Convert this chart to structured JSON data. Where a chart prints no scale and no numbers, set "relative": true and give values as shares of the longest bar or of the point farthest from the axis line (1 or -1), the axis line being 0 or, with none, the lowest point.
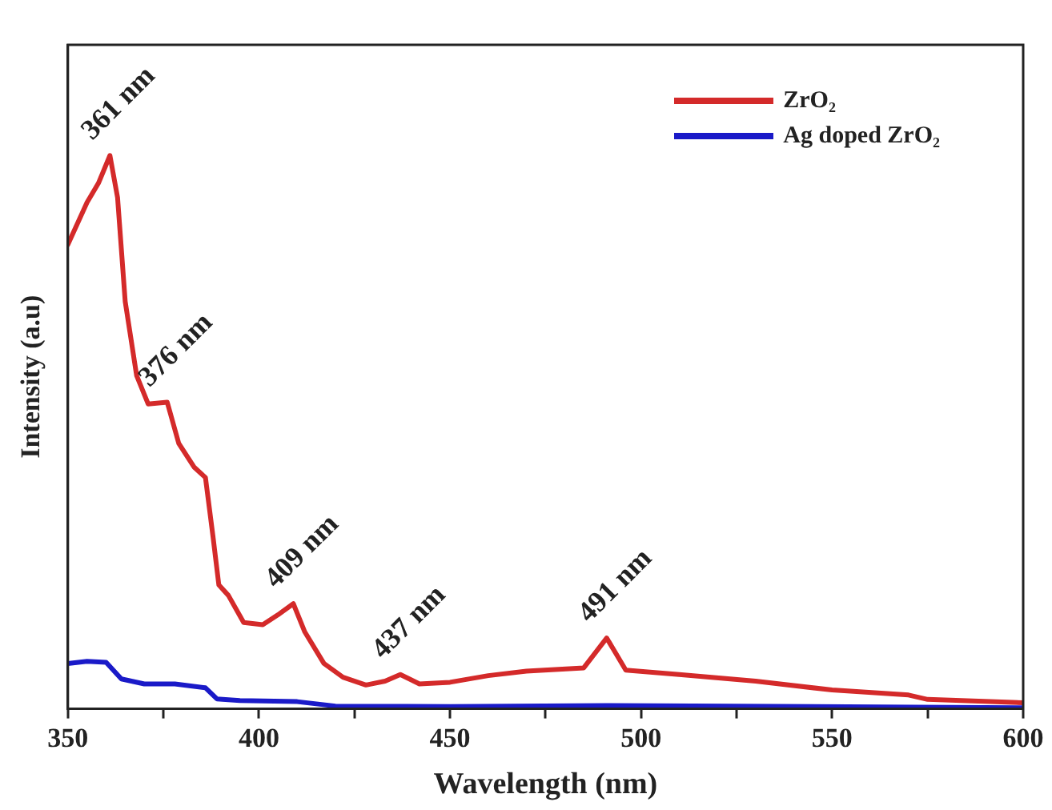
{
  "chart_data": {
    "type": "line",
    "xlabel": "Wavelength (nm)",
    "ylabel": "Intensity (a.u)",
    "relative": true,
    "xlim": [
      350,
      600
    ],
    "xticks": [
      350,
      {
        "value": 375,
        "label": null
      },
      400,
      {
        "value": 425,
        "label": null
      },
      450,
      {
        "value": 475,
        "label": null
      },
      500,
      {
        "value": 525,
        "label": null
      },
      550,
      {
        "value": 575,
        "label": null
      },
      600
    ],
    "legend": "top right",
    "marker": "none",
    "line_style": "solid",
    "series": [
      {
        "name": "ZrO₂",
        "color": "#d42a2a",
        "x": [
          350,
          355,
          358,
          361,
          363,
          365,
          368,
          371,
          376,
          379,
          383,
          386,
          388,
          389.5,
          392,
          396,
          401,
          405,
          409,
          412,
          417,
          422,
          428,
          433,
          437,
          442,
          450,
          460,
          470,
          485,
          491,
          496,
          510,
          530,
          550,
          570,
          575,
          600
        ],
        "values": [
          0.839,
          0.915,
          0.95,
          1,
          0.924,
          0.736,
          0.602,
          0.551,
          0.554,
          0.48,
          0.437,
          0.418,
          0.31,
          0.224,
          0.205,
          0.156,
          0.152,
          0.17,
          0.19,
          0.139,
          0.082,
          0.057,
          0.043,
          0.05,
          0.062,
          0.045,
          0.048,
          0.06,
          0.068,
          0.074,
          0.128,
          0.07,
          0.062,
          0.05,
          0.034,
          0.025,
          0.017,
          0.011
        ]
      },
      {
        "name": "Ag doped ZrO₂",
        "color": "#1a1ac8",
        "x": [
          350,
          355,
          360,
          364,
          370,
          378,
          386,
          389,
          395,
          410,
          420,
          450,
          491,
          600
        ],
        "values": [
          0.082,
          0.086,
          0.084,
          0.054,
          0.045,
          0.045,
          0.038,
          0.018,
          0.015,
          0.013,
          0.005,
          0.004,
          0.006,
          0.002
        ]
      }
    ],
    "annotations": [
      {
        "text": "361 nm",
        "x": 361,
        "y": 1
      },
      {
        "text": "376 nm",
        "x": 376,
        "y": 0.554
      },
      {
        "text": "409 nm",
        "x": 409,
        "y": 0.19
      },
      {
        "text": "437 nm",
        "x": 437,
        "y": 0.062
      },
      {
        "text": "491 nm",
        "x": 491,
        "y": 0.128
      }
    ]
  }
}
